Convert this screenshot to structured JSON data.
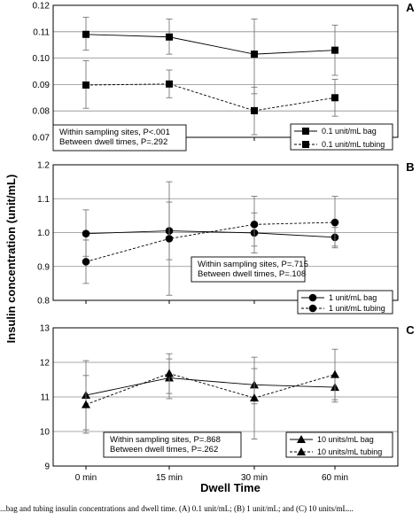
{
  "figure": {
    "y_axis_title": "Insulin concentration (unit/mL)",
    "x_axis_title": "Dwell Time",
    "caption": "...bag and tubing insulin concentrations and dwell time. (A) 0.1 unit/mL; (B) 1 unit/mL; and (C) 10 units/mL..."
  },
  "chart_data": [
    {
      "type": "line",
      "panel": "A",
      "categories": [
        "0 min",
        "15 min",
        "30 min",
        "60 min"
      ],
      "ylim": [
        0.07,
        0.12
      ],
      "yticks": [
        "0.07",
        "0.08",
        "0.09",
        "0.10",
        "0.11",
        "0.12"
      ],
      "grid": true,
      "marker": "square",
      "legend_position": "bottom-right",
      "stats": [
        "Within sampling sites, P<.001",
        "Between dwell times, P=.292"
      ],
      "series": [
        {
          "name": "0.1 unit/mL bag",
          "style": "solid",
          "values": [
            0.109,
            0.108,
            0.1015,
            0.103
          ],
          "err_low": [
            0.103,
            0.1015,
            0.0865,
            0.0935
          ],
          "err_high": [
            0.1155,
            0.1148,
            0.1148,
            0.1125
          ]
        },
        {
          "name": "0.1 unit/mL tubing",
          "style": "dashed",
          "values": [
            0.0898,
            0.0902,
            0.0801,
            0.085
          ],
          "err_low": [
            0.081,
            0.085,
            0.071,
            0.078
          ],
          "err_high": [
            0.099,
            0.0955,
            0.089,
            0.092
          ]
        }
      ]
    },
    {
      "type": "line",
      "panel": "B",
      "categories": [
        "0 min",
        "15 min",
        "30 min",
        "60 min"
      ],
      "ylim": [
        0.8,
        1.2
      ],
      "yticks": [
        "0.8",
        "0.9",
        "1.0",
        "1.1",
        "1.2"
      ],
      "grid": true,
      "marker": "circle",
      "legend_position": "bottom-right",
      "stats": [
        "Within sampling sites, P=.715",
        "Between dwell times, P=.108"
      ],
      "series": [
        {
          "name": "1 unit/mL bag",
          "style": "solid",
          "values": [
            0.997,
            1.005,
            0.999,
            0.986
          ],
          "err_low": [
            0.93,
            0.92,
            0.94,
            0.96
          ],
          "err_high": [
            1.067,
            1.09,
            1.058,
            1.015
          ]
        },
        {
          "name": "1 unit/mL tubing",
          "style": "dashed",
          "values": [
            0.914,
            0.982,
            1.024,
            1.03
          ],
          "err_low": [
            0.85,
            0.815,
            0.96,
            0.955
          ],
          "err_high": [
            0.978,
            1.15,
            1.107,
            1.107
          ]
        }
      ]
    },
    {
      "type": "line",
      "panel": "C",
      "categories": [
        "0 min",
        "15 min",
        "30 min",
        "60 min"
      ],
      "ylim": [
        9,
        13
      ],
      "yticks": [
        "9",
        "10",
        "11",
        "12",
        "13"
      ],
      "grid": true,
      "marker": "triangle",
      "legend_position": "bottom-right",
      "stats": [
        "Within sampling sites, P=.868",
        "Between dwell times, P=.262"
      ],
      "series": [
        {
          "name": "10 units/mL bag",
          "style": "solid",
          "values": [
            11.05,
            11.55,
            11.35,
            11.28
          ],
          "err_low": [
            10.05,
            10.95,
            10.8,
            10.85
          ],
          "err_high": [
            12.05,
            12.1,
            11.82,
            11.62
          ]
        },
        {
          "name": "10 units/mL tubing",
          "style": "dashed",
          "values": [
            10.78,
            11.68,
            10.97,
            11.65
          ],
          "err_low": [
            9.95,
            11.1,
            9.78,
            10.92
          ],
          "err_high": [
            11.62,
            12.25,
            12.15,
            12.38
          ]
        }
      ]
    }
  ]
}
